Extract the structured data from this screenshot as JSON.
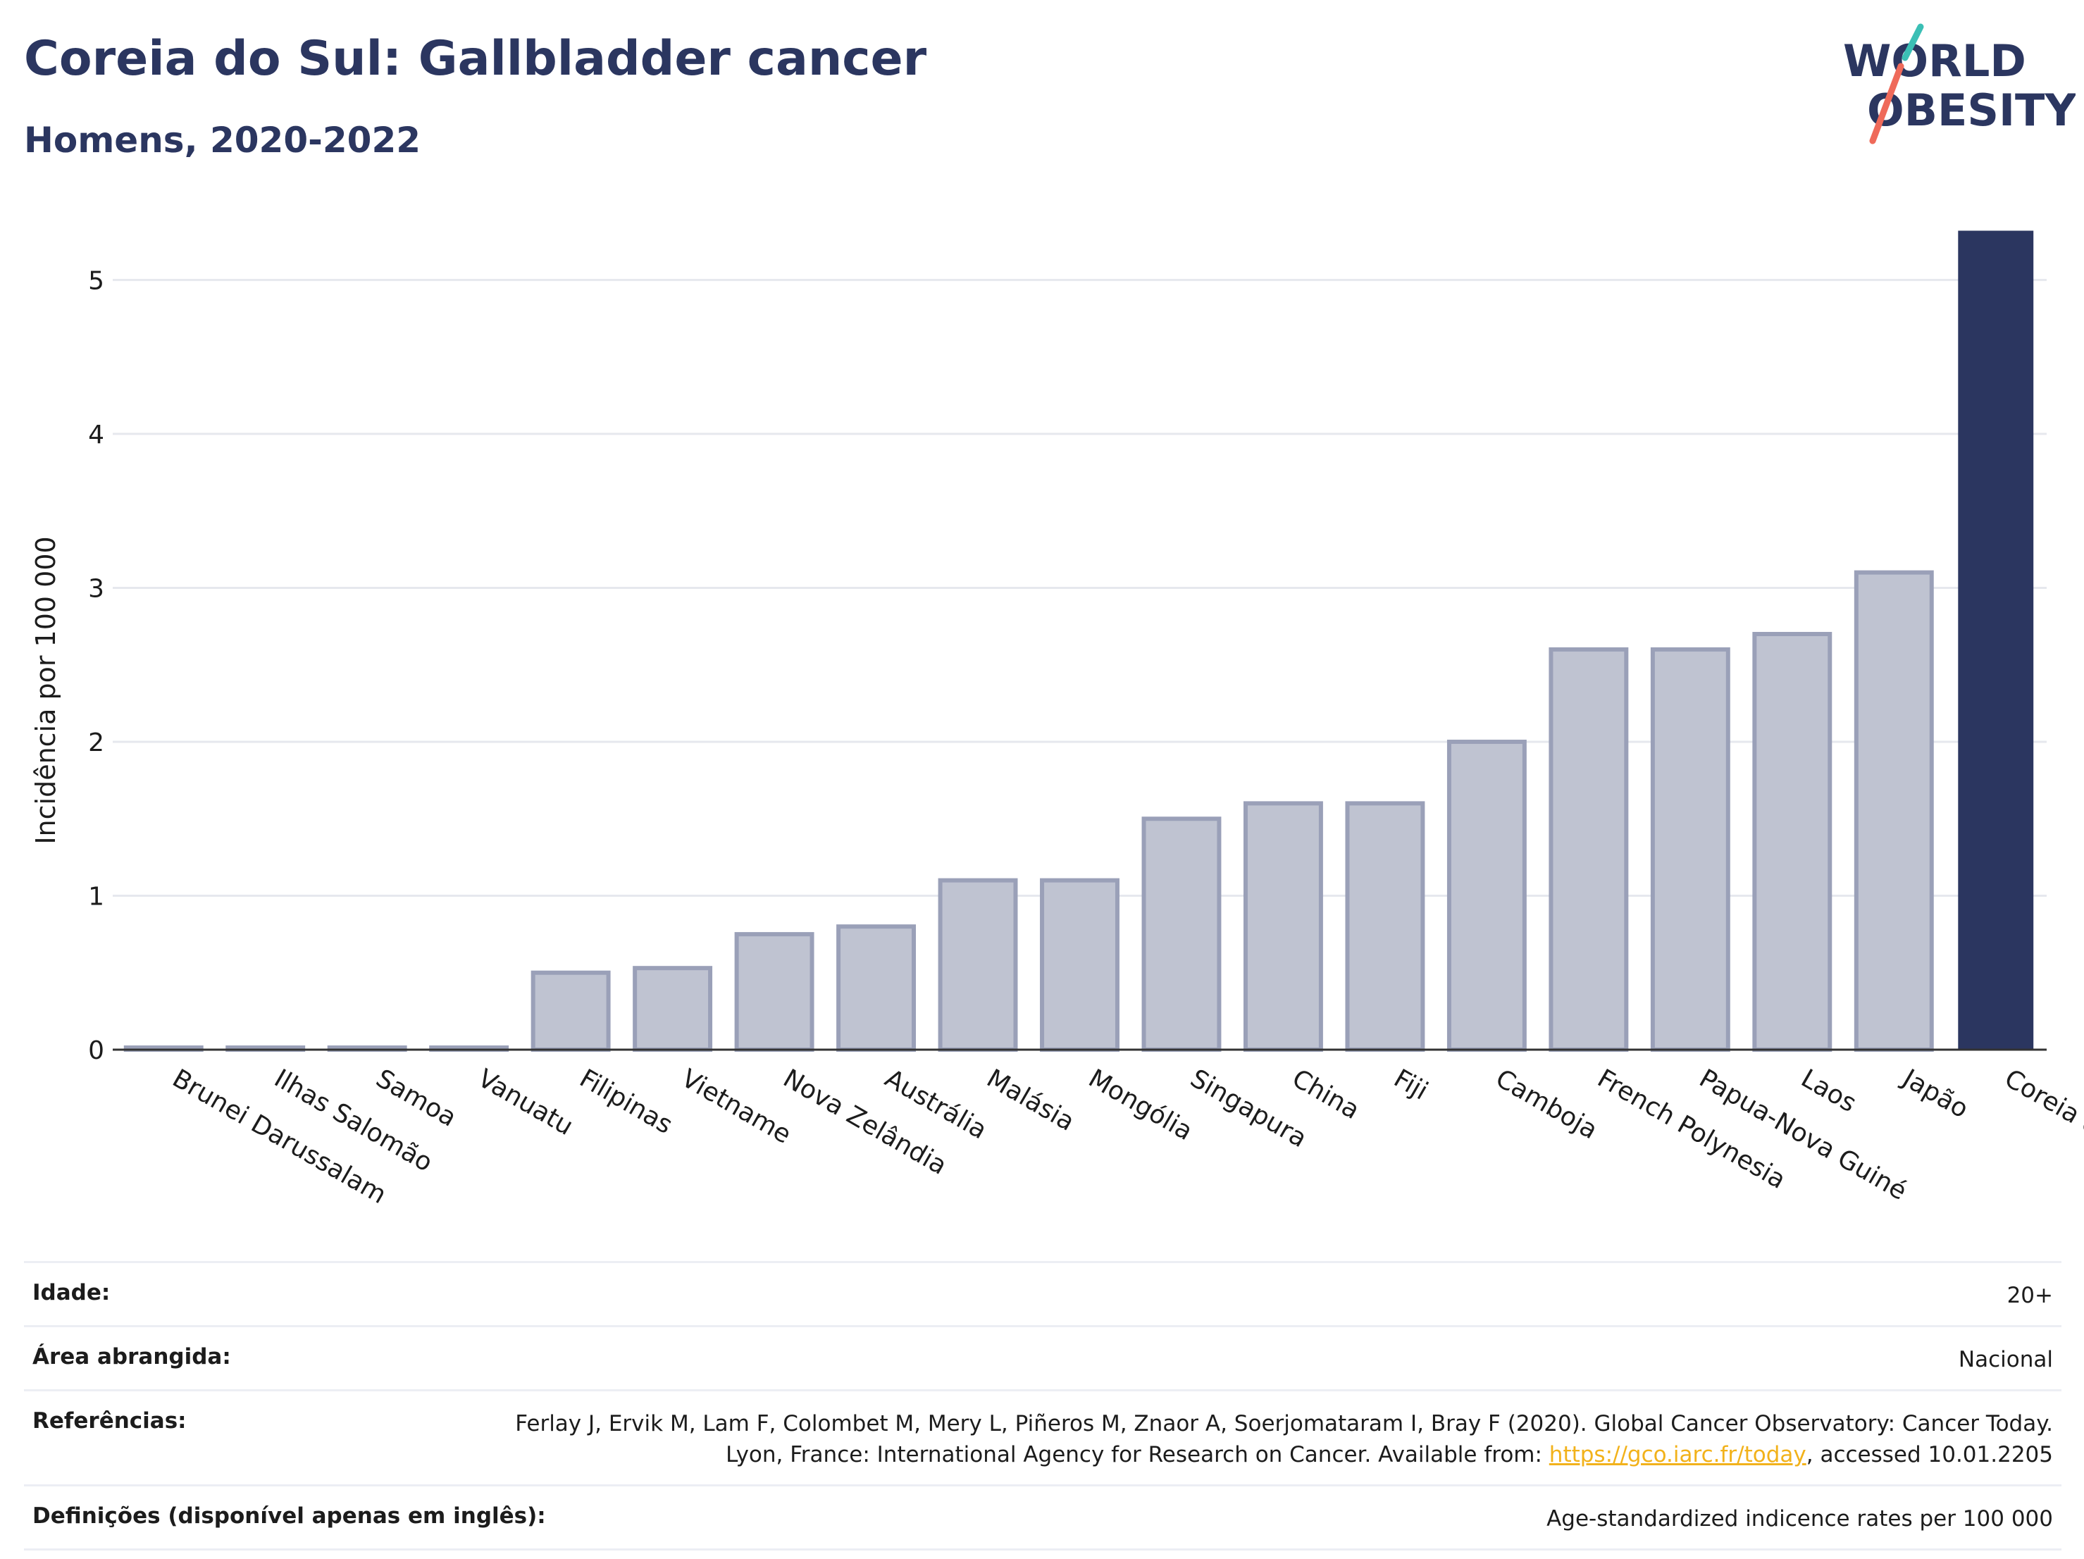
{
  "header": {
    "title": "Coreia do Sul: Gallbladder cancer",
    "subtitle": "Homens, 2020-2022"
  },
  "logo": {
    "line1": "WORLD",
    "line2": "OBESITY",
    "accent_teal": "#3bbfb5",
    "accent_coral": "#ef6a5a"
  },
  "chart_data": {
    "type": "bar",
    "ylabel": "Incidência por 100 000",
    "ylim": [
      0,
      5.4
    ],
    "yticks": [
      0,
      1,
      2,
      3,
      4,
      5
    ],
    "grid": true,
    "categories": [
      "Brunei Darussalam",
      "Ilhas Salomão",
      "Samoa",
      "Vanuatu",
      "Filipinas",
      "Vietname",
      "Nova Zelândia",
      "Austrália",
      "Malásia",
      "Mongólia",
      "Singapura",
      "China",
      "Fiji",
      "Camboja",
      "French Polynesia",
      "Papua-Nova Guiné",
      "Laos",
      "Japão",
      "Coreia do Sul"
    ],
    "values": [
      0.01,
      0.01,
      0.01,
      0.01,
      0.5,
      0.53,
      0.75,
      0.8,
      1.1,
      1.1,
      1.5,
      1.6,
      1.6,
      2.0,
      2.6,
      2.6,
      2.7,
      3.1,
      5.32
    ],
    "highlight": "Coreia do Sul",
    "colors": {
      "bar": "#bfc3d1",
      "bar_border": "#9aa0b8",
      "highlight": "#2b3660"
    }
  },
  "meta": {
    "age_label": "Idade:",
    "age_value": "20+",
    "area_label": "Área abrangida:",
    "area_value": "Nacional",
    "ref_label": "Referências:",
    "ref_text_1": "Ferlay J, Ervik M, Lam F, Colombet M, Mery L, Piñeros M, Znaor A, Soerjomataram I, Bray F (2020). Global Cancer Observatory: Cancer Today. Lyon, France: International Agency for Research on Cancer. Available from: ",
    "ref_link": "https://gco.iarc.fr/today",
    "ref_text_2": ", accessed 10.01.2205",
    "def_label": "Definições (disponível apenas em inglês):",
    "def_value": "Age-standardized indicence rates per 100 000"
  }
}
